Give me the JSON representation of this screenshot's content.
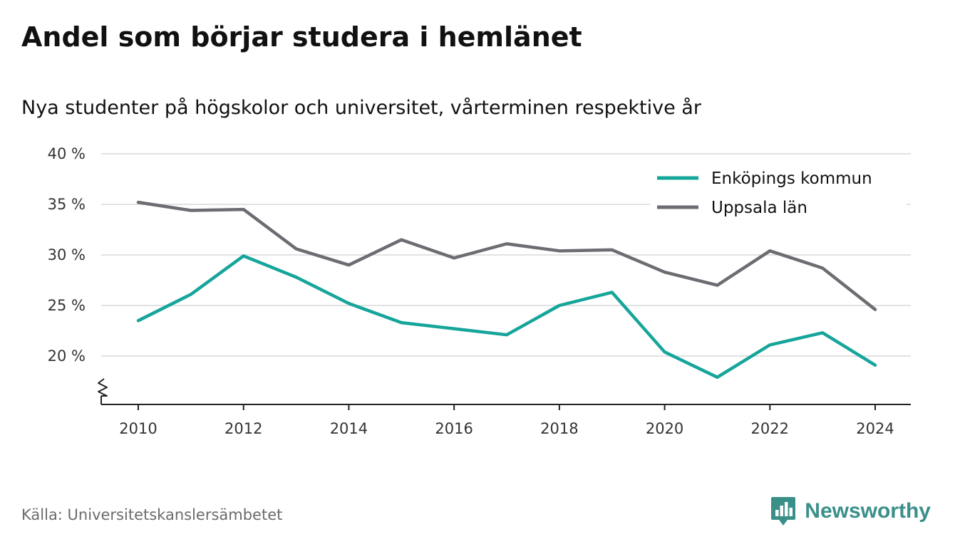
{
  "header": {
    "title": "Andel som börjar studera i hemlänet",
    "subtitle": "Nya studenter på högskolor och universitet, vårterminen respektive år"
  },
  "footer": {
    "source": "Källa: Universitetskanslersämbetet",
    "brand": "Newsworthy",
    "brand_color": "#3a8f89"
  },
  "chart_data": {
    "type": "line",
    "title": "Andel som börjar studera i hemlänet",
    "subtitle": "Nya studenter på högskolor och universitet, vårterminen respektive år",
    "x": [
      2010,
      2011,
      2012,
      2013,
      2014,
      2015,
      2016,
      2017,
      2018,
      2019,
      2020,
      2021,
      2022,
      2023,
      2024
    ],
    "x_ticks": [
      2010,
      2012,
      2014,
      2016,
      2018,
      2020,
      2022,
      2024
    ],
    "y_ticks": [
      20,
      25,
      30,
      35,
      40
    ],
    "y_tick_labels": [
      "20 %",
      "25 %",
      "30 %",
      "35 %",
      "40 %"
    ],
    "ylim": [
      15.3,
      40
    ],
    "y_axis_break": true,
    "grid": true,
    "legend_position": "top-right",
    "series": [
      {
        "name": "Enköpings kommun",
        "color": "#16a59a",
        "values": [
          23.5,
          26.1,
          29.9,
          27.8,
          25.2,
          23.3,
          22.7,
          22.1,
          25.0,
          26.3,
          20.4,
          17.9,
          21.1,
          22.3,
          19.1
        ]
      },
      {
        "name": "Uppsala län",
        "color": "#6e6c72",
        "values": [
          35.2,
          34.4,
          34.5,
          30.6,
          29.0,
          31.5,
          29.7,
          31.1,
          30.4,
          30.5,
          28.3,
          27.0,
          30.4,
          28.7,
          24.6
        ]
      }
    ]
  }
}
